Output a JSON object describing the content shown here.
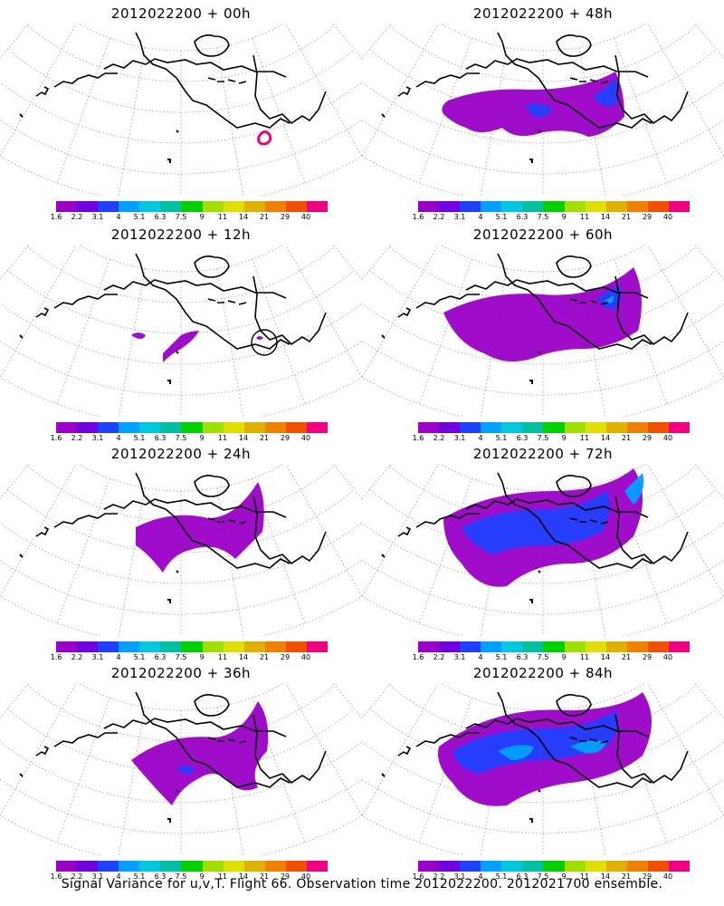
{
  "caption": "Signal Variance for u,v,T. Flight 66. Observation time 2012022200. 2012021700 ensemble.",
  "colorbar": {
    "colors": [
      "#9a00c8",
      "#7000e0",
      "#2040ff",
      "#00a0ff",
      "#00c8e0",
      "#00c0a0",
      "#00d000",
      "#a0e000",
      "#e0e000",
      "#e0b000",
      "#f08000",
      "#f05000",
      "#f00080"
    ],
    "labels": [
      "1.6",
      "2.2",
      "3.1",
      "4",
      "5.1",
      "6.3",
      "7.5",
      "9",
      "11",
      "14",
      "21",
      "29",
      "40"
    ]
  },
  "panels": [
    {
      "title": "2012022200 + 00h",
      "icon": "map-icon"
    },
    {
      "title": "2012022200 + 48h",
      "icon": "map-icon"
    },
    {
      "title": "2012022200 + 12h",
      "icon": "map-icon"
    },
    {
      "title": "2012022200 + 60h",
      "icon": "map-icon"
    },
    {
      "title": "2012022200 + 24h",
      "icon": "map-icon"
    },
    {
      "title": "2012022200 + 72h",
      "icon": "map-icon"
    },
    {
      "title": "2012022200 + 36h",
      "icon": "map-icon"
    },
    {
      "title": "2012022200 + 84h",
      "icon": "map-icon"
    }
  ]
}
